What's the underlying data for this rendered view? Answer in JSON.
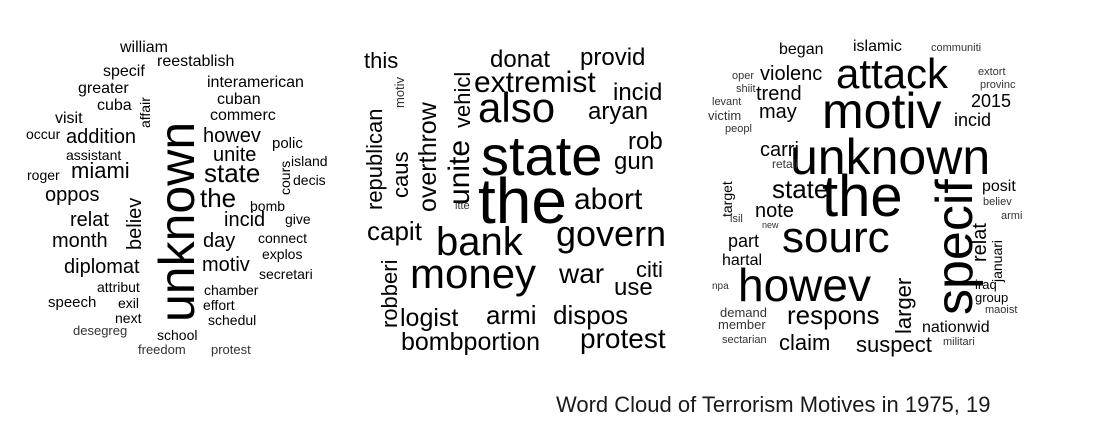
{
  "caption": "Word Cloud of Terrorism Motives in 1975, 19",
  "clouds": [
    {
      "words": [
        "william",
        "reestablish",
        "specif",
        "greater",
        "interamerican",
        "affair",
        "cuba",
        "cuban",
        "visit",
        "addition",
        "commerc",
        "occur",
        "howev",
        "polic",
        "assistant",
        "unite",
        "island",
        "roger",
        "miami",
        "state",
        "cours",
        "decis",
        "unknown",
        "oppos",
        "believ",
        "the",
        "bomb",
        "relat",
        "incid",
        "give",
        "month",
        "day",
        "connect",
        "explos",
        "diplomat",
        "motiv",
        "secretari",
        "attribut",
        "chamber",
        "speech",
        "exil",
        "effort",
        "next",
        "schedul",
        "desegreg",
        "school",
        "freedom",
        "protest"
      ]
    },
    {
      "words": [
        "this",
        "vehicl",
        "motiv",
        "donat",
        "provid",
        "republican",
        "overthrow",
        "extremist",
        "also",
        "incid",
        "caus",
        "unite",
        "aryan",
        "state",
        "rob",
        "gun",
        "the",
        "abort",
        "itte",
        "capit",
        "bank",
        "govern",
        "money",
        "robberi",
        "war",
        "citi",
        "use",
        "logist",
        "armi",
        "dispos",
        "bombportion",
        "protest"
      ]
    },
    {
      "words": [
        "began",
        "islamic",
        "communiti",
        "oper",
        "attack",
        "extort",
        "violenc",
        "provinc",
        "shiit",
        "trend",
        "2015",
        "levant",
        "victim",
        "may",
        "motiv",
        "incid",
        "peopl",
        "carri",
        "unknown",
        "retali",
        "the",
        "state",
        "posit",
        "target",
        "believ",
        "note",
        "specif",
        "relat",
        "armi",
        "isil",
        "new",
        "part",
        "sourc",
        "januari",
        "hartal",
        "howev",
        "iraq",
        "npa",
        "larger",
        "group",
        "demand",
        "respons",
        "maoist",
        "member",
        "nationwid",
        "sectarian",
        "claim",
        "suspect",
        "militari"
      ]
    }
  ]
}
